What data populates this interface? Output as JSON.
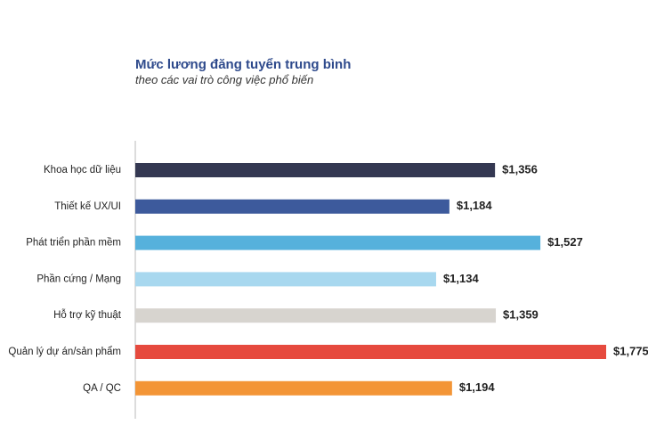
{
  "chart_data": {
    "type": "bar",
    "orientation": "horizontal",
    "title": "Mức lương đăng tuyển trung bình",
    "subtitle": "theo các vai trò công việc phổ biến",
    "categories": [
      "Khoa học dữ liệu",
      "Thiết kế UX/UI",
      "Phát triển phần mềm",
      "Phần cứng / Mạng",
      "Hỗ trợ kỹ thuật",
      "Quản lý dự án/sản phẩm",
      "QA / QC"
    ],
    "values": [
      1356,
      1184,
      1527,
      1134,
      1359,
      1775,
      1194
    ],
    "value_labels": [
      "$1,356",
      "$1,184",
      "$1,527",
      "$1,134",
      "$1,359",
      "$1,775",
      "$1,194"
    ],
    "colors": [
      "#343852",
      "#3d5a9c",
      "#56b1dc",
      "#a8d8ef",
      "#d7d4cf",
      "#e64a3e",
      "#f39536"
    ],
    "xlim": [
      0,
      2000
    ],
    "grid": false,
    "legend": "none"
  }
}
